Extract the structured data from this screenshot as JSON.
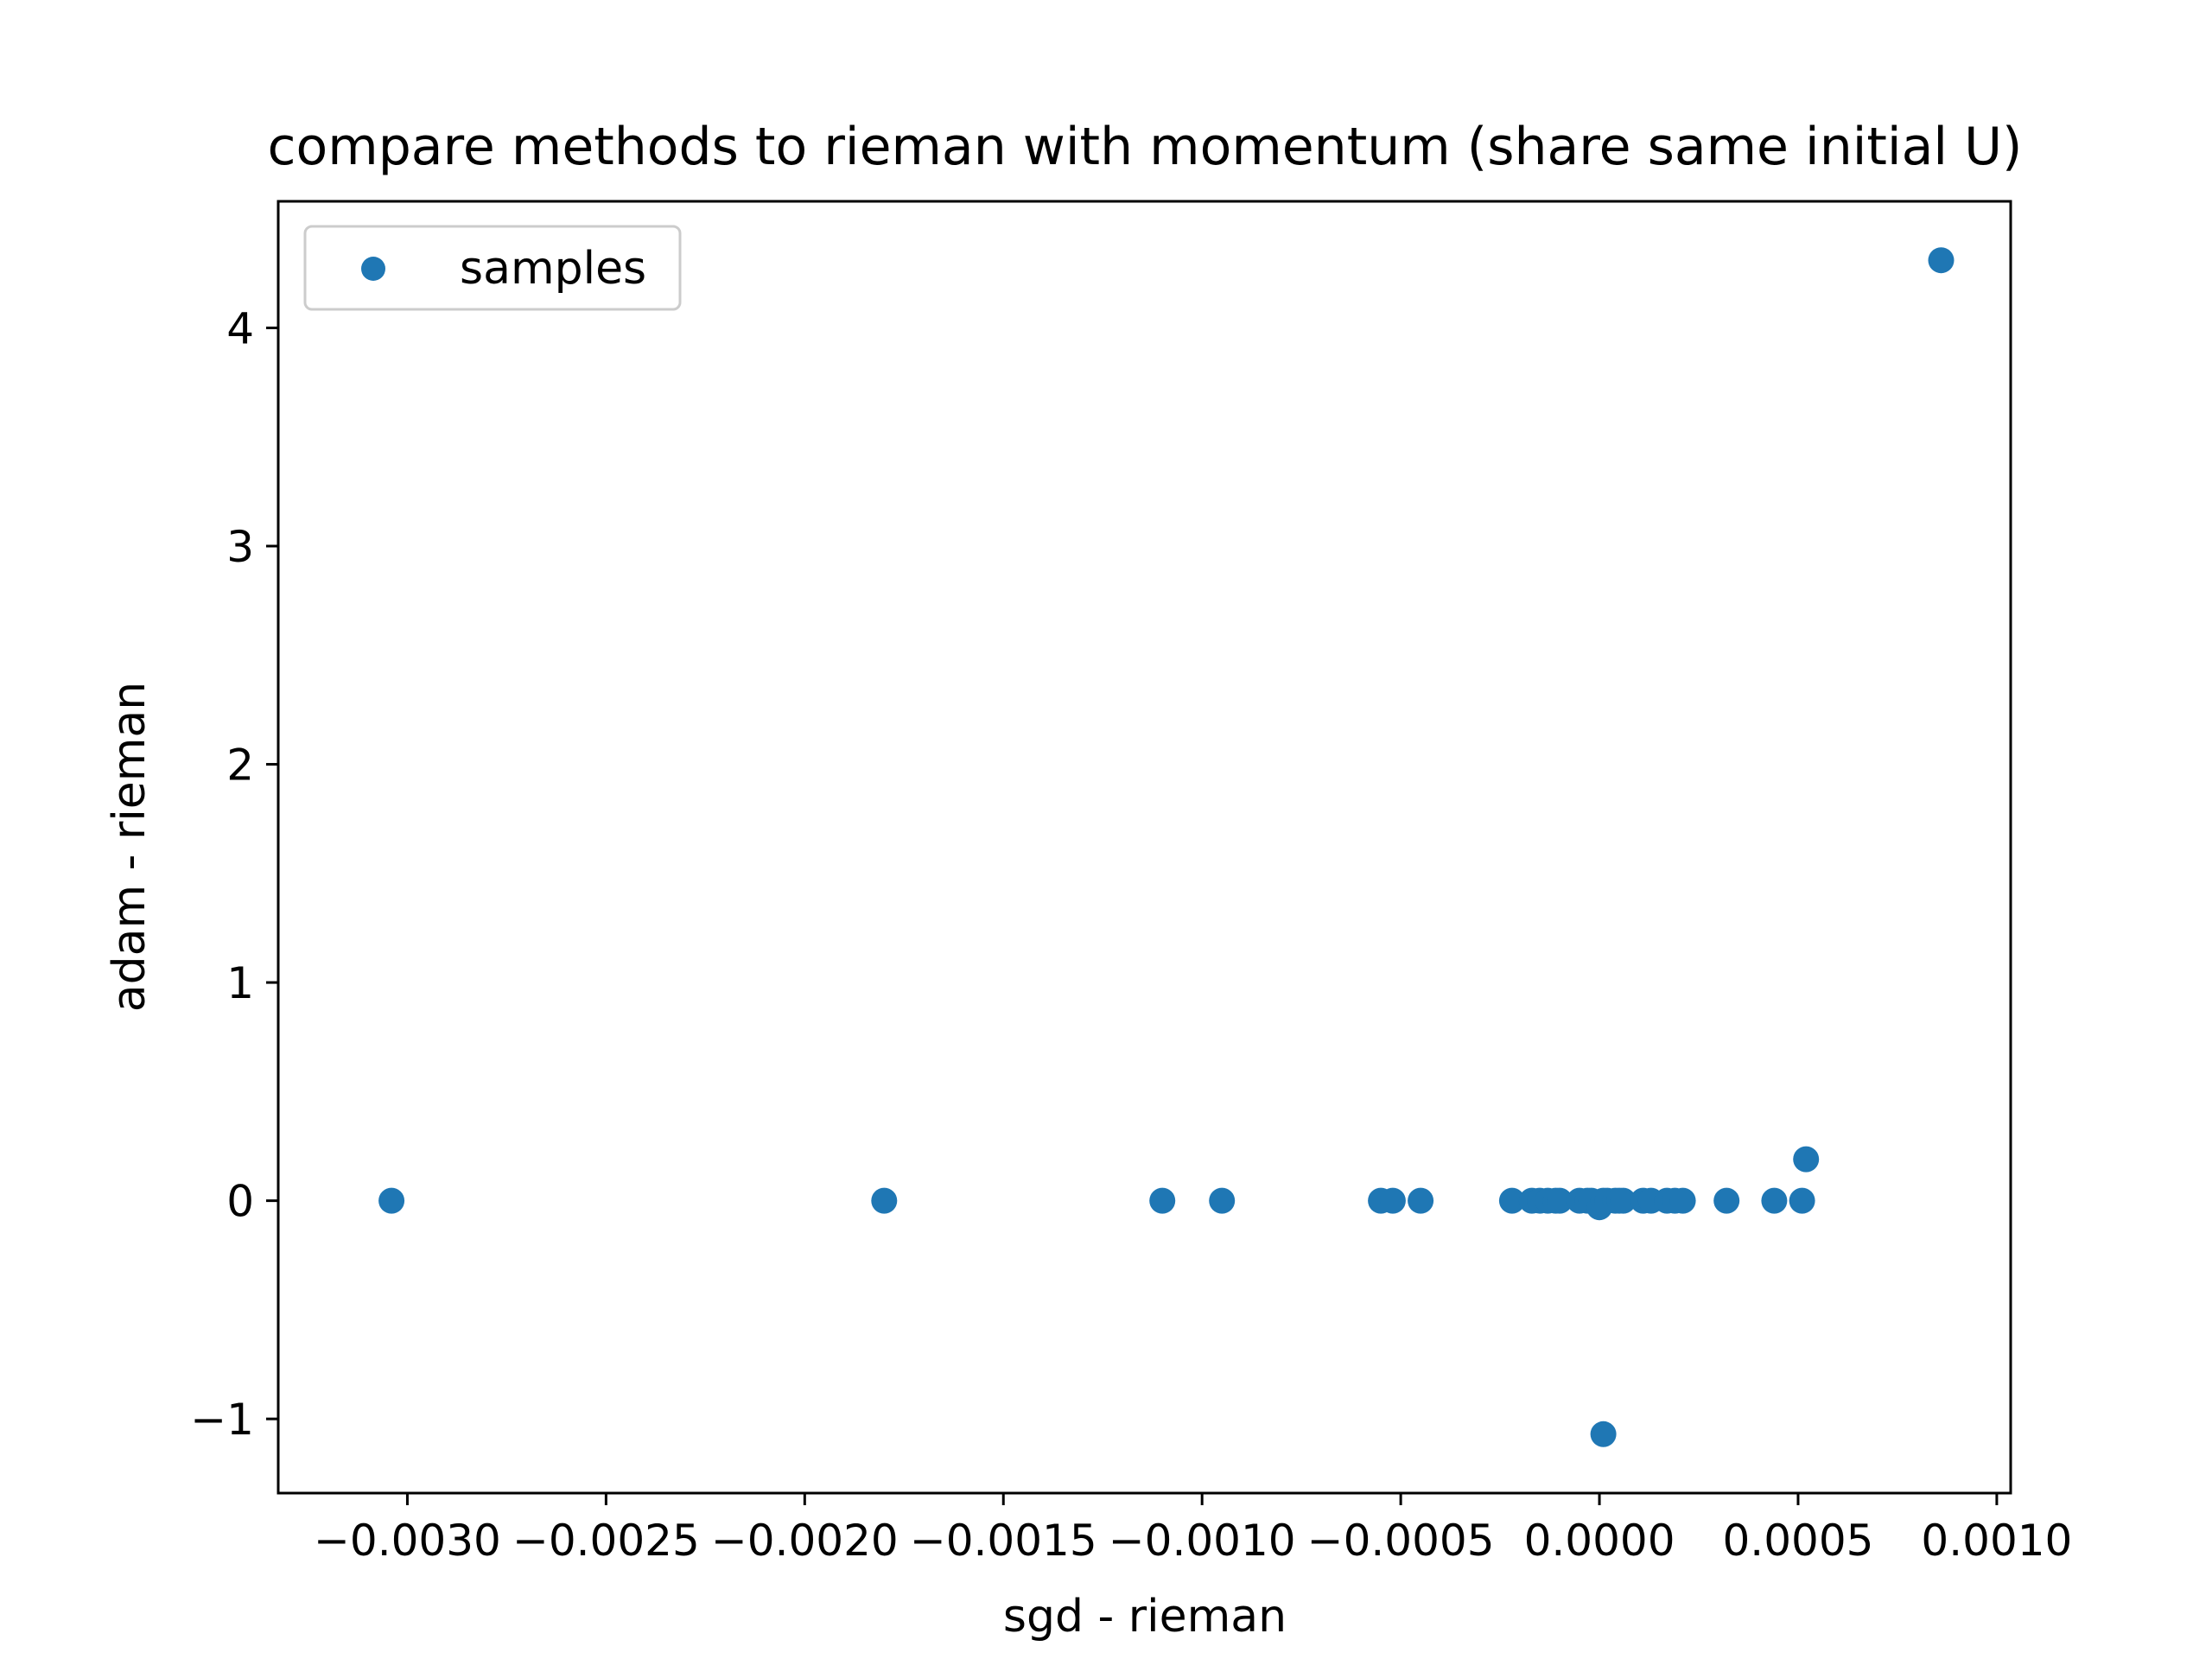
{
  "chart_data": {
    "type": "scatter",
    "title": "compare methods to rieman with momentum (share same initial U)",
    "xlabel": "sgd - rieman",
    "ylabel": "adam - rieman",
    "xlim": [
      -0.003325,
      0.001035
    ],
    "ylim": [
      -1.34,
      4.58
    ],
    "x_ticks": [
      -0.003,
      -0.0025,
      -0.002,
      -0.0015,
      -0.001,
      -0.0005,
      0.0,
      0.0005,
      0.001
    ],
    "x_tick_labels": [
      "−0.0030",
      "−0.0025",
      "−0.0020",
      "−0.0015",
      "−0.0010",
      "−0.0005",
      "0.0000",
      "0.0005",
      "0.0010"
    ],
    "y_ticks": [
      -1,
      0,
      1,
      2,
      3,
      4
    ],
    "y_tick_labels": [
      "−1",
      "0",
      "1",
      "2",
      "3",
      "4"
    ],
    "grid": false,
    "legend": {
      "position": "top-left",
      "entries": [
        "samples"
      ]
    },
    "color": "#1f77b4",
    "series": [
      {
        "name": "samples",
        "points": [
          [
            -0.00304,
            0.0
          ],
          [
            -0.0018,
            0.0
          ],
          [
            -0.0011,
            0.0
          ],
          [
            -0.00095,
            0.0
          ],
          [
            -0.00055,
            0.0
          ],
          [
            -0.00052,
            0.0
          ],
          [
            -0.00045,
            0.0
          ],
          [
            -0.00022,
            0.0
          ],
          [
            -0.00017,
            0.0
          ],
          [
            -0.00015,
            0.0
          ],
          [
            -0.00013,
            0.0
          ],
          [
            -0.00011,
            0.0
          ],
          [
            -0.0001,
            0.0
          ],
          [
            -5e-05,
            0.0
          ],
          [
            -3e-05,
            0.0
          ],
          [
            -2e-05,
            0.0
          ],
          [
            0.0,
            -0.03
          ],
          [
            1e-05,
            0.0
          ],
          [
            2e-05,
            0.0
          ],
          [
            4e-05,
            0.0
          ],
          [
            5e-05,
            0.0
          ],
          [
            6e-05,
            0.0
          ],
          [
            0.00011,
            0.0
          ],
          [
            0.00013,
            0.0
          ],
          [
            0.00017,
            0.0
          ],
          [
            0.00019,
            0.0
          ],
          [
            0.00021,
            0.0
          ],
          [
            0.00032,
            0.0
          ],
          [
            0.00044,
            0.0
          ],
          [
            0.00051,
            0.0
          ],
          [
            0.00052,
            0.19
          ],
          [
            1e-05,
            -1.07
          ],
          [
            0.00086,
            4.31
          ]
        ]
      }
    ]
  }
}
